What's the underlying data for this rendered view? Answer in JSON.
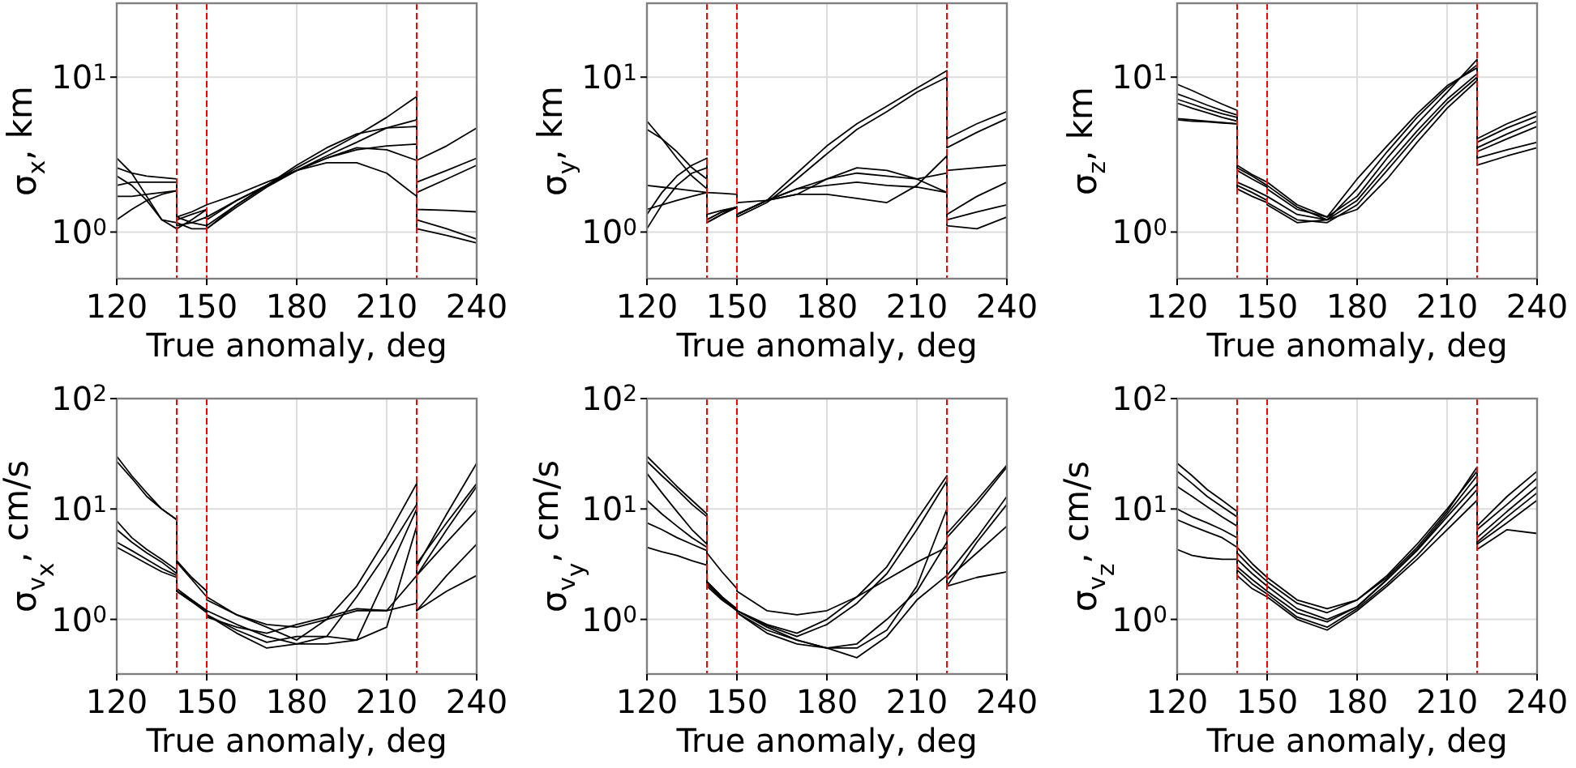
{
  "chart_data": [
    {
      "type": "line",
      "ylabel": "σ$_{x}$, km",
      "xlabel": "True anomaly, deg",
      "log": "y",
      "grid": true,
      "line_style": "solid",
      "marker": "none",
      "xlim": [
        120,
        240
      ],
      "xticks": [
        120,
        150,
        180,
        210,
        240
      ],
      "ylim": [
        0.5,
        30
      ],
      "yticks": [
        {
          "value": 1,
          "label": "10$^{0}$"
        },
        {
          "value": 10,
          "label": "10$^{1}$"
        }
      ],
      "x": [
        120,
        125,
        130,
        135,
        140,
        140,
        145,
        150,
        150,
        160,
        170,
        180,
        190,
        200,
        210,
        220,
        220,
        230,
        240
      ],
      "ref_lines": [
        {
          "axis": "x",
          "value": 140,
          "color": "#ff0000",
          "line_style": "dashed"
        },
        {
          "axis": "x",
          "value": 150,
          "color": "#ff0000",
          "line_style": "dashed"
        },
        {
          "axis": "x",
          "value": 220,
          "color": "#ff0000",
          "line_style": "dashed"
        }
      ],
      "series": [
        {
          "color": "#000000",
          "values": [
            3.0,
            2.4,
            1.7,
            1.2,
            1.15,
            1.15,
            1.05,
            1.05,
            1.05,
            1.5,
            2.0,
            2.6,
            3.3,
            4.2,
            5.5,
            7.5,
            2.9,
            3.6,
            4.7
          ]
        },
        {
          "color": "#000000",
          "values": [
            2.6,
            2.4,
            2.3,
            2.25,
            2.2,
            1.25,
            1.35,
            1.5,
            1.5,
            1.75,
            2.1,
            2.5,
            3.0,
            3.4,
            3.6,
            3.7,
            2.1,
            2.5,
            3.0
          ]
        },
        {
          "color": "#000000",
          "values": [
            2.3,
            2.0,
            1.6,
            1.2,
            1.05,
            1.05,
            1.2,
            1.4,
            1.25,
            1.6,
            2.0,
            2.5,
            2.8,
            2.8,
            2.4,
            1.7,
            1.4,
            1.38,
            1.35
          ]
        },
        {
          "color": "#000000",
          "values": [
            2.0,
            2.1,
            2.1,
            2.1,
            2.1,
            1.1,
            1.15,
            1.25,
            1.1,
            1.5,
            2.0,
            2.7,
            3.5,
            4.3,
            4.7,
            4.8,
            1.8,
            2.2,
            2.7
          ]
        },
        {
          "color": "#000000",
          "values": [
            1.7,
            1.7,
            1.75,
            1.8,
            1.85,
            1.2,
            1.3,
            1.4,
            1.2,
            1.6,
            2.0,
            2.5,
            3.1,
            3.8,
            4.7,
            5.3,
            1.2,
            1.05,
            0.9
          ]
        },
        {
          "color": "#000000",
          "values": [
            1.2,
            1.4,
            1.6,
            1.75,
            1.85,
            1.25,
            1.15,
            1.1,
            1.05,
            1.45,
            1.95,
            2.5,
            3.0,
            3.5,
            3.4,
            2.9,
            1.05,
            0.95,
            0.85
          ]
        }
      ]
    },
    {
      "type": "line",
      "ylabel": "σ$_{y}$, km",
      "xlabel": "True anomaly, deg",
      "log": "y",
      "grid": true,
      "line_style": "solid",
      "marker": "none",
      "xlim": [
        120,
        240
      ],
      "xticks": [
        120,
        150,
        180,
        210,
        240
      ],
      "ylim": [
        0.5,
        30
      ],
      "yticks": [
        {
          "value": 1,
          "label": "10$^{0}$"
        },
        {
          "value": 10,
          "label": "10$^{1}$"
        }
      ],
      "x": [
        120,
        125,
        130,
        135,
        140,
        140,
        145,
        150,
        150,
        160,
        170,
        180,
        190,
        200,
        210,
        220,
        220,
        230,
        240
      ],
      "ref_lines": [
        {
          "axis": "x",
          "value": 140,
          "color": "#ff0000",
          "line_style": "dashed"
        },
        {
          "axis": "x",
          "value": 150,
          "color": "#ff0000",
          "line_style": "dashed"
        },
        {
          "axis": "x",
          "value": 220,
          "color": "#ff0000",
          "line_style": "dashed"
        }
      ],
      "series": [
        {
          "color": "#000000",
          "values": [
            5.2,
            4.0,
            3.0,
            2.3,
            1.9,
            1.3,
            1.38,
            1.45,
            1.3,
            1.6,
            2.4,
            3.6,
            5.0,
            6.5,
            8.5,
            11,
            4.0,
            5.0,
            6.0
          ]
        },
        {
          "color": "#000000",
          "values": [
            4.6,
            4.0,
            3.3,
            2.6,
            2.2,
            1.15,
            1.3,
            1.45,
            1.25,
            1.55,
            2.2,
            3.2,
            4.6,
            6.0,
            8.0,
            10,
            3.5,
            4.4,
            5.4
          ]
        },
        {
          "color": "#000000",
          "values": [
            2.0,
            1.95,
            1.9,
            1.85,
            1.8,
            1.8,
            1.78,
            1.75,
            1.55,
            1.6,
            1.75,
            2.2,
            2.6,
            2.5,
            2.2,
            1.8,
            2.5,
            2.6,
            2.7
          ]
        },
        {
          "color": "#000000",
          "values": [
            1.4,
            1.5,
            1.6,
            1.7,
            1.8,
            1.2,
            1.35,
            1.45,
            1.3,
            1.6,
            1.9,
            2.2,
            2.4,
            2.3,
            2.2,
            2.4,
            1.3,
            1.7,
            2.1
          ]
        },
        {
          "color": "#000000",
          "values": [
            1.3,
            1.8,
            2.3,
            2.7,
            3.0,
            1.15,
            1.3,
            1.45,
            1.3,
            1.6,
            1.75,
            1.75,
            1.65,
            1.55,
            2.0,
            3.1,
            1.2,
            1.35,
            1.5
          ]
        },
        {
          "color": "#000000",
          "values": [
            1.05,
            1.5,
            2.0,
            2.4,
            2.6,
            1.2,
            1.35,
            1.45,
            1.3,
            1.6,
            1.9,
            2.0,
            2.1,
            2.0,
            1.95,
            1.8,
            1.1,
            1.05,
            1.25
          ]
        }
      ]
    },
    {
      "type": "line",
      "ylabel": "σ$_{z}$, km",
      "xlabel": "True anomaly, deg",
      "log": "y",
      "grid": true,
      "line_style": "solid",
      "marker": "none",
      "xlim": [
        120,
        240
      ],
      "xticks": [
        120,
        150,
        180,
        210,
        240
      ],
      "ylim": [
        0.5,
        30
      ],
      "yticks": [
        {
          "value": 1,
          "label": "10$^{0}$"
        },
        {
          "value": 10,
          "label": "10$^{1}$"
        }
      ],
      "x": [
        120,
        125,
        130,
        135,
        140,
        140,
        145,
        150,
        150,
        160,
        170,
        180,
        190,
        200,
        210,
        220,
        220,
        230,
        240
      ],
      "ref_lines": [
        {
          "axis": "x",
          "value": 140,
          "color": "#ff0000",
          "line_style": "dashed"
        },
        {
          "axis": "x",
          "value": 150,
          "color": "#ff0000",
          "line_style": "dashed"
        },
        {
          "axis": "x",
          "value": 220,
          "color": "#ff0000",
          "line_style": "dashed"
        }
      ],
      "series": [
        {
          "color": "#000000",
          "values": [
            9.0,
            8.2,
            7.4,
            6.7,
            6.1,
            2.7,
            2.35,
            2.1,
            2.1,
            1.5,
            1.25,
            1.7,
            3.0,
            5.0,
            8.0,
            13,
            4.0,
            5.0,
            6.0
          ]
        },
        {
          "color": "#000000",
          "values": [
            7.8,
            7.2,
            6.6,
            6.1,
            5.7,
            2.6,
            2.3,
            2.0,
            2.0,
            1.45,
            1.2,
            1.9,
            3.3,
            5.5,
            8.5,
            12,
            3.8,
            4.7,
            5.6
          ]
        },
        {
          "color": "#000000",
          "values": [
            7.2,
            6.7,
            6.2,
            5.8,
            5.5,
            2.5,
            2.2,
            1.95,
            1.9,
            1.4,
            1.25,
            2.2,
            3.6,
            5.8,
            8.8,
            11.5,
            3.5,
            4.3,
            5.2
          ]
        },
        {
          "color": "#000000",
          "values": [
            6.8,
            6.3,
            5.9,
            5.5,
            5.2,
            2.1,
            1.9,
            1.7,
            1.7,
            1.3,
            1.2,
            1.6,
            2.7,
            4.5,
            7.2,
            10.5,
            3.3,
            4.0,
            4.8
          ]
        },
        {
          "color": "#000000",
          "values": [
            5.4,
            5.3,
            5.2,
            5.1,
            5.0,
            2.0,
            1.8,
            1.6,
            1.55,
            1.2,
            1.15,
            1.5,
            2.5,
            4.2,
            6.8,
            10,
            3.0,
            3.4,
            3.8
          ]
        },
        {
          "color": "#000000",
          "values": [
            5.3,
            5.2,
            5.15,
            5.05,
            5.0,
            1.9,
            1.7,
            1.55,
            1.5,
            1.15,
            1.2,
            1.4,
            2.2,
            3.8,
            6.3,
            9.5,
            2.7,
            3.1,
            3.5
          ]
        }
      ]
    },
    {
      "type": "line",
      "ylabel": "σ$_{v}$$_{x}$, cm/s",
      "xlabel": "True anomaly, deg",
      "log": "y",
      "grid": true,
      "line_style": "solid",
      "marker": "none",
      "xlim": [
        120,
        240
      ],
      "xticks": [
        120,
        150,
        180,
        210,
        240
      ],
      "ylim": [
        0.32,
        100
      ],
      "yticks": [
        {
          "value": 1,
          "label": "10$^{0}$"
        },
        {
          "value": 10,
          "label": "10$^{1}$"
        },
        {
          "value": 100,
          "label": "10$^{2}$"
        }
      ],
      "x": [
        120,
        125,
        130,
        135,
        140,
        140,
        145,
        150,
        150,
        160,
        170,
        180,
        190,
        200,
        210,
        220,
        220,
        230,
        240
      ],
      "ref_lines": [
        {
          "axis": "x",
          "value": 140,
          "color": "#ff0000",
          "line_style": "dashed"
        },
        {
          "axis": "x",
          "value": 150,
          "color": "#ff0000",
          "line_style": "dashed"
        },
        {
          "axis": "x",
          "value": 220,
          "color": "#ff0000",
          "line_style": "dashed"
        }
      ],
      "series": [
        {
          "color": "#000000",
          "values": [
            30,
            20,
            14,
            10,
            8,
            3.4,
            2.4,
            1.8,
            1.6,
            1.1,
            0.85,
            0.65,
            1.0,
            2.0,
            5.5,
            17,
            3.0,
            9.0,
            26
          ]
        },
        {
          "color": "#000000",
          "values": [
            27,
            19,
            13,
            10,
            8,
            1.9,
            1.5,
            1.2,
            1.2,
            0.9,
            0.7,
            0.6,
            0.7,
            1.6,
            4.0,
            11,
            3.2,
            7.5,
            17
          ]
        },
        {
          "color": "#000000",
          "values": [
            7.8,
            5.5,
            4.3,
            3.5,
            2.8,
            1.8,
            1.45,
            1.2,
            1.1,
            0.75,
            0.55,
            0.6,
            0.6,
            0.65,
            2.5,
            10,
            2.5,
            6.5,
            16
          ]
        },
        {
          "color": "#000000",
          "values": [
            6.5,
            5.0,
            4.0,
            3.3,
            2.6,
            1.8,
            1.5,
            1.2,
            1.1,
            0.8,
            0.62,
            0.7,
            0.7,
            0.65,
            0.85,
            7,
            2.5,
            5.0,
            9.8
          ]
        },
        {
          "color": "#000000",
          "values": [
            5.0,
            4.2,
            3.5,
            2.9,
            2.5,
            3.3,
            2.3,
            1.6,
            1.5,
            1.1,
            0.9,
            0.85,
            1.0,
            1.2,
            1.2,
            2.5,
            1.2,
            2.5,
            4.8
          ]
        },
        {
          "color": "#000000",
          "values": [
            4.5,
            3.8,
            3.2,
            2.7,
            2.4,
            1.8,
            1.45,
            1.15,
            1.05,
            0.85,
            0.75,
            0.9,
            1.05,
            1.25,
            1.2,
            1.4,
            1.2,
            1.8,
            2.5
          ]
        }
      ]
    },
    {
      "type": "line",
      "ylabel": "σ$_{v}$$_{y}$, cm/s",
      "xlabel": "True anomaly, deg",
      "log": "y",
      "grid": true,
      "line_style": "solid",
      "marker": "none",
      "xlim": [
        120,
        240
      ],
      "xticks": [
        120,
        150,
        180,
        210,
        240
      ],
      "ylim": [
        0.32,
        100
      ],
      "yticks": [
        {
          "value": 1,
          "label": "10$^{0}$"
        },
        {
          "value": 10,
          "label": "10$^{1}$"
        },
        {
          "value": 100,
          "label": "10$^{2}$"
        }
      ],
      "x": [
        120,
        125,
        130,
        135,
        140,
        140,
        145,
        150,
        150,
        160,
        170,
        180,
        190,
        200,
        210,
        220,
        220,
        230,
        240
      ],
      "ref_lines": [
        {
          "axis": "x",
          "value": 140,
          "color": "#ff0000",
          "line_style": "dashed"
        },
        {
          "axis": "x",
          "value": 150,
          "color": "#ff0000",
          "line_style": "dashed"
        },
        {
          "axis": "x",
          "value": 220,
          "color": "#ff0000",
          "line_style": "dashed"
        }
      ],
      "series": [
        {
          "color": "#000000",
          "values": [
            30,
            22,
            16,
            12,
            9,
            2.2,
            1.6,
            1.2,
            1.2,
            0.9,
            0.75,
            1.0,
            1.6,
            3.0,
            8.0,
            20,
            6.0,
            12,
            25
          ]
        },
        {
          "color": "#000000",
          "values": [
            27,
            20,
            15,
            11,
            8.5,
            2.1,
            1.55,
            1.2,
            1.2,
            0.88,
            0.7,
            0.9,
            1.4,
            2.6,
            6.5,
            18,
            5.5,
            11,
            24
          ]
        },
        {
          "color": "#000000",
          "values": [
            21,
            14,
            9.5,
            6.5,
            4.8,
            2.0,
            1.5,
            1.2,
            1.15,
            0.75,
            0.6,
            0.55,
            0.55,
            0.8,
            2.0,
            10,
            2.5,
            5.5,
            13
          ]
        },
        {
          "color": "#000000",
          "values": [
            12,
            9.0,
            7.0,
            5.5,
            4.5,
            4.0,
            2.7,
            1.9,
            1.8,
            1.2,
            1.1,
            1.2,
            1.6,
            2.3,
            3.3,
            4.5,
            2.0,
            5.0,
            11
          ]
        },
        {
          "color": "#000000",
          "values": [
            7.5,
            6.5,
            5.5,
            4.8,
            4.2,
            2.1,
            1.55,
            1.2,
            1.15,
            0.8,
            0.65,
            0.55,
            0.6,
            1.0,
            1.8,
            5.0,
            2.3,
            4.0,
            7.0
          ]
        },
        {
          "color": "#000000",
          "values": [
            4.5,
            4.1,
            3.8,
            3.4,
            3.1,
            2.2,
            1.6,
            1.25,
            1.2,
            0.85,
            0.65,
            0.55,
            0.45,
            0.7,
            1.5,
            2.5,
            2.0,
            2.4,
            2.7
          ]
        }
      ]
    },
    {
      "type": "line",
      "ylabel": "σ$_{v}$$_{z}$, cm/s",
      "xlabel": "True anomaly, deg",
      "log": "y",
      "grid": true,
      "line_style": "solid",
      "marker": "none",
      "xlim": [
        120,
        240
      ],
      "xticks": [
        120,
        150,
        180,
        210,
        240
      ],
      "ylim": [
        0.32,
        100
      ],
      "yticks": [
        {
          "value": 1,
          "label": "10$^{0}$"
        },
        {
          "value": 10,
          "label": "10$^{1}$"
        },
        {
          "value": 100,
          "label": "10$^{2}$"
        }
      ],
      "x": [
        120,
        125,
        130,
        135,
        140,
        140,
        145,
        150,
        150,
        160,
        170,
        180,
        190,
        200,
        210,
        220,
        220,
        230,
        240
      ],
      "ref_lines": [
        {
          "axis": "x",
          "value": 140,
          "color": "#ff0000",
          "line_style": "dashed"
        },
        {
          "axis": "x",
          "value": 150,
          "color": "#ff0000",
          "line_style": "dashed"
        },
        {
          "axis": "x",
          "value": 220,
          "color": "#ff0000",
          "line_style": "dashed"
        }
      ],
      "series": [
        {
          "color": "#000000",
          "values": [
            26,
            20,
            15,
            12,
            9.5,
            4.5,
            3.2,
            2.4,
            2.4,
            1.5,
            1.25,
            1.5,
            2.4,
            4.5,
            9.5,
            24,
            7.0,
            13,
            22
          ]
        },
        {
          "color": "#000000",
          "values": [
            22,
            17,
            13,
            10.5,
            8.5,
            4.0,
            2.9,
            2.2,
            2.2,
            1.4,
            1.15,
            1.5,
            2.5,
            4.8,
            10,
            22,
            6.5,
            11,
            19
          ]
        },
        {
          "color": "#000000",
          "values": [
            16,
            13,
            10.5,
            8.5,
            7.0,
            3.5,
            2.6,
            2.0,
            2.0,
            1.25,
            1.0,
            1.3,
            2.3,
            4.3,
            9.0,
            20,
            5.5,
            9.5,
            16
          ]
        },
        {
          "color": "#000000",
          "values": [
            10,
            8.5,
            7.5,
            6.5,
            5.5,
            3.0,
            2.3,
            1.8,
            1.8,
            1.15,
            0.95,
            1.3,
            2.3,
            4.2,
            8.5,
            17,
            5.0,
            8.5,
            14
          ]
        },
        {
          "color": "#000000",
          "values": [
            8.0,
            7.0,
            6.2,
            5.5,
            4.5,
            2.8,
            2.1,
            1.7,
            1.7,
            1.05,
            0.85,
            1.25,
            2.1,
            3.8,
            7.5,
            15,
            4.8,
            7.5,
            12
          ]
        },
        {
          "color": "#000000",
          "values": [
            4.3,
            3.8,
            3.6,
            3.5,
            3.5,
            2.5,
            1.9,
            1.6,
            1.6,
            1.0,
            0.8,
            1.2,
            2.0,
            3.5,
            6.5,
            12,
            4.3,
            6.5,
            6.0
          ]
        }
      ]
    }
  ]
}
